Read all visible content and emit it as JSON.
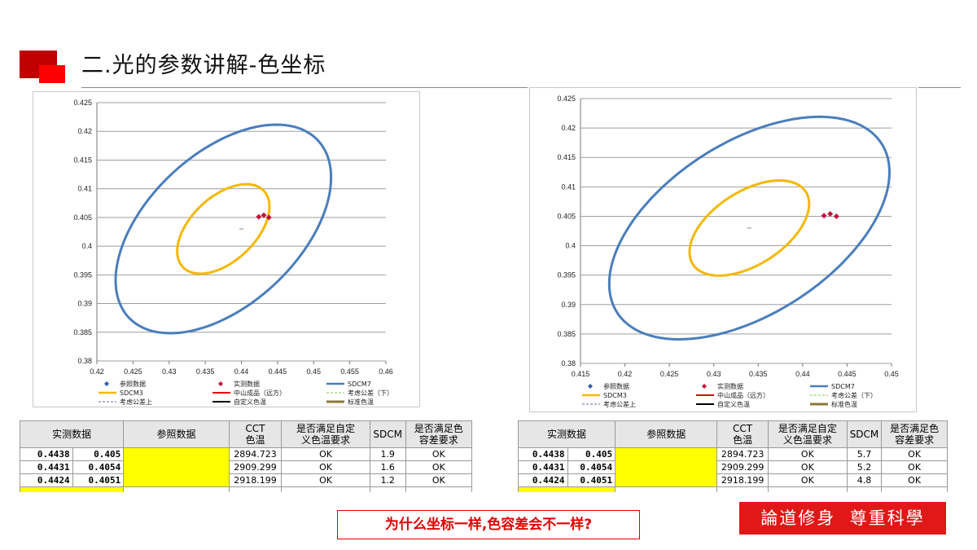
{
  "slide": {
    "title": "二.光的参数讲解-色坐标",
    "question": "为什么坐标一样,色容差会不一样?",
    "motto": "論道修身  尊重科學"
  },
  "legend": [
    "参照数据",
    "实测数据",
    "SDCM7",
    "SDCM3",
    "中山成品（远方）",
    "考虑公差（下）",
    "考虑公差上",
    "自定义色温",
    "标准色温"
  ],
  "table": {
    "headers": [
      "实测数据",
      "参照数据",
      "CCT\n色温",
      "是否满足自定\n义色温要求",
      "SDCM",
      "是否满足色\n容差要求"
    ],
    "left_rows": [
      {
        "x": "0.4438",
        "y": "0.405",
        "cct": "2894.723",
        "ok1": "OK",
        "sdcm": "1.9",
        "ok2": "OK"
      },
      {
        "x": "0.4431",
        "y": "0.4054",
        "cct": "2909.299",
        "ok1": "OK",
        "sdcm": "1.6",
        "ok2": "OK"
      },
      {
        "x": "0.4424",
        "y": "0.4051",
        "cct": "2918.199",
        "ok1": "OK",
        "sdcm": "1.2",
        "ok2": "OK"
      }
    ],
    "right_rows": [
      {
        "x": "0.4438",
        "y": "0.405",
        "cct": "2894.723",
        "ok1": "OK",
        "sdcm": "5.7",
        "ok2": "OK"
      },
      {
        "x": "0.4431",
        "y": "0.4054",
        "cct": "2909.299",
        "ok1": "OK",
        "sdcm": "5.2",
        "ok2": "OK"
      },
      {
        "x": "0.4424",
        "y": "0.4051",
        "cct": "2918.199",
        "ok1": "OK",
        "sdcm": "4.8",
        "ok2": "OK"
      }
    ]
  },
  "colors": {
    "sdcm7": "#4a7ebb",
    "sdcm3": "#f5b800",
    "measured": "#c0143c",
    "reference": "#2e5fa8",
    "accent": "#e01818"
  },
  "chart_data": [
    {
      "type": "scatter",
      "xlim": [
        0.42,
        0.46
      ],
      "ylim": [
        0.38,
        0.425
      ],
      "xticks": [
        "0.42",
        "0.425",
        "0.43",
        "0.435",
        "0.44",
        "0.445",
        "0.45",
        "0.455",
        "0.46"
      ],
      "yticks": [
        "0.425",
        "0.42",
        "0.415",
        "0.41",
        "0.405",
        "0.4",
        "0.395",
        "0.39",
        "0.385",
        "0.38"
      ],
      "grid": "horizontal",
      "legend_position": "bottom",
      "ellipses": [
        {
          "name": "SDCM7",
          "center": [
            0.4375,
            0.403
          ],
          "semi_major": 0.0205,
          "semi_minor": 0.0115,
          "angle_deg": 56
        },
        {
          "name": "SDCM3",
          "center": [
            0.4375,
            0.403
          ],
          "semi_major": 0.0088,
          "semi_minor": 0.0049,
          "angle_deg": 56
        }
      ],
      "series": [
        {
          "name": "实测数据",
          "points": [
            [
              0.4438,
              0.405
            ],
            [
              0.4431,
              0.4054
            ],
            [
              0.4424,
              0.4051
            ]
          ]
        },
        {
          "name": "参照数据",
          "points": [
            [
              0.44,
              0.403
            ]
          ]
        }
      ]
    },
    {
      "type": "scatter",
      "xlim": [
        0.415,
        0.45
      ],
      "ylim": [
        0.38,
        0.425
      ],
      "xticks": [
        "0.415",
        "0.42",
        "0.425",
        "0.43",
        "0.435",
        "0.44",
        "0.445",
        "0.45"
      ],
      "yticks": [
        "0.425",
        "0.42",
        "0.415",
        "0.41",
        "0.405",
        "0.4",
        "0.395",
        "0.39",
        "0.385",
        "0.38"
      ],
      "grid": "horizontal",
      "legend_position": "bottom",
      "ellipses": [
        {
          "name": "SDCM7",
          "center": [
            0.434,
            0.403
          ],
          "semi_major": 0.0215,
          "semi_minor": 0.012,
          "angle_deg": 55
        },
        {
          "name": "SDCM3",
          "center": [
            0.434,
            0.403
          ],
          "semi_major": 0.0092,
          "semi_minor": 0.0051,
          "angle_deg": 55
        }
      ],
      "series": [
        {
          "name": "实测数据",
          "points": [
            [
              0.4438,
              0.405
            ],
            [
              0.4431,
              0.4054
            ],
            [
              0.4424,
              0.4051
            ]
          ]
        },
        {
          "name": "参照数据",
          "points": [
            [
              0.434,
              0.403
            ]
          ]
        }
      ]
    }
  ]
}
